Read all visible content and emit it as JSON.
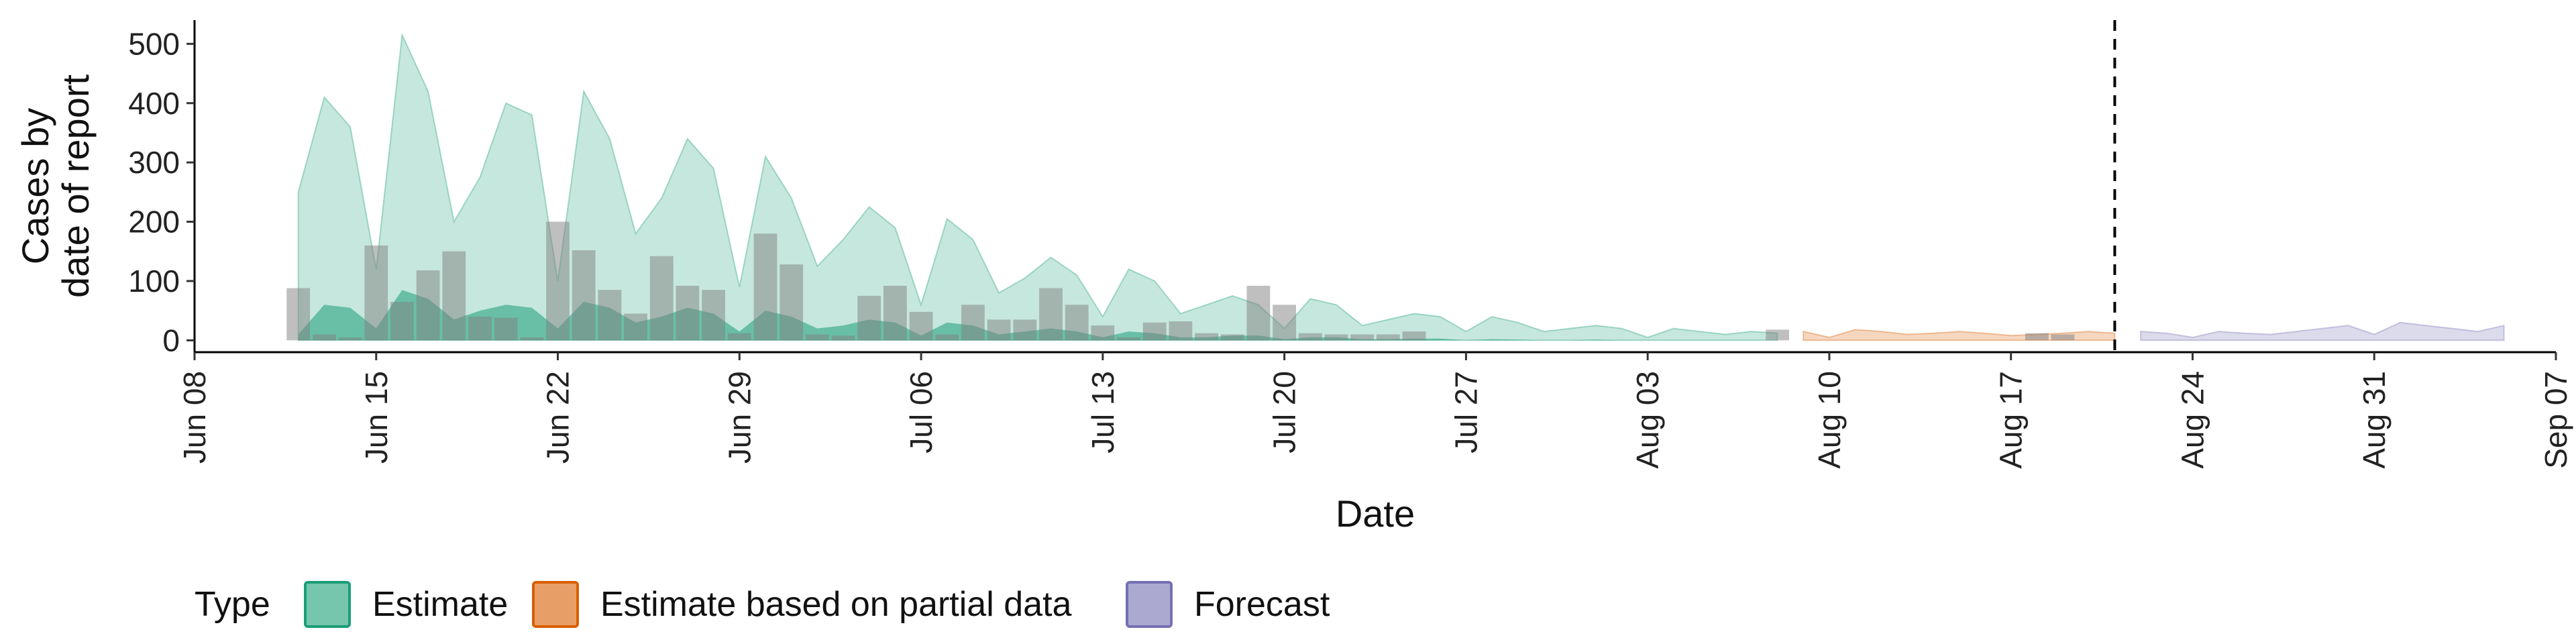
{
  "chart_data": {
    "type": "area",
    "xlabel": "Date",
    "ylabel_lines": [
      "Cases by",
      "date of report"
    ],
    "ylim": [
      -20,
      540
    ],
    "xlim": [
      "2020-06-08",
      "2020-09-07"
    ],
    "yticks": [
      0,
      100,
      200,
      300,
      400,
      500
    ],
    "xticks": [
      "2020-06-08",
      "2020-06-15",
      "2020-06-22",
      "2020-06-29",
      "2020-07-06",
      "2020-07-13",
      "2020-07-20",
      "2020-07-27",
      "2020-08-03",
      "2020-08-10",
      "2020-08-17",
      "2020-08-24",
      "2020-08-31",
      "2020-09-07"
    ],
    "xtick_labels": [
      "Jun 08",
      "Jun 15",
      "Jun 22",
      "Jun 29",
      "Jul 06",
      "Jul 13",
      "Jul 20",
      "Jul 27",
      "Aug 03",
      "Aug 10",
      "Aug 17",
      "Aug 24",
      "Aug 31",
      "Sep 07"
    ],
    "grid": false,
    "forecast_line_date": "2020-08-21",
    "colors": {
      "estimate": "#1b9e77",
      "partial": "#d95f02",
      "forecast": "#7570b3",
      "bars": "#808080"
    },
    "legend": {
      "title": "Type",
      "position": "bottom",
      "entries": [
        {
          "key": "estimate",
          "label": "Estimate"
        },
        {
          "key": "partial",
          "label": "Estimate based on partial data"
        },
        {
          "key": "forecast",
          "label": "Forecast"
        }
      ]
    },
    "bars": {
      "x": [
        "2020-06-12",
        "2020-06-13",
        "2020-06-14",
        "2020-06-15",
        "2020-06-16",
        "2020-06-17",
        "2020-06-18",
        "2020-06-19",
        "2020-06-20",
        "2020-06-21",
        "2020-06-22",
        "2020-06-23",
        "2020-06-24",
        "2020-06-25",
        "2020-06-26",
        "2020-06-27",
        "2020-06-28",
        "2020-06-29",
        "2020-06-30",
        "2020-07-01",
        "2020-07-02",
        "2020-07-03",
        "2020-07-04",
        "2020-07-05",
        "2020-07-06",
        "2020-07-07",
        "2020-07-08",
        "2020-07-09",
        "2020-07-10",
        "2020-07-11",
        "2020-07-12",
        "2020-07-13",
        "2020-07-14",
        "2020-07-15",
        "2020-07-16",
        "2020-07-17",
        "2020-07-18",
        "2020-07-19",
        "2020-07-20",
        "2020-07-21",
        "2020-07-22",
        "2020-07-23",
        "2020-07-24",
        "2020-07-25",
        "2020-08-08",
        "2020-08-18",
        "2020-08-19"
      ],
      "values": [
        88,
        10,
        5,
        160,
        65,
        118,
        150,
        40,
        38,
        5,
        200,
        152,
        85,
        45,
        142,
        92,
        85,
        12,
        180,
        128,
        10,
        8,
        75,
        92,
        48,
        10,
        60,
        35,
        35,
        88,
        60,
        25,
        5,
        30,
        32,
        12,
        10,
        92,
        60,
        12,
        10,
        10,
        10,
        15,
        18,
        12,
        10
      ]
    },
    "series": [
      {
        "name": "Estimate",
        "key": "estimate",
        "x": [
          "2020-06-12",
          "2020-06-13",
          "2020-06-14",
          "2020-06-15",
          "2020-06-16",
          "2020-06-17",
          "2020-06-18",
          "2020-06-19",
          "2020-06-20",
          "2020-06-21",
          "2020-06-22",
          "2020-06-23",
          "2020-06-24",
          "2020-06-25",
          "2020-06-26",
          "2020-06-27",
          "2020-06-28",
          "2020-06-29",
          "2020-06-30",
          "2020-07-01",
          "2020-07-02",
          "2020-07-03",
          "2020-07-04",
          "2020-07-05",
          "2020-07-06",
          "2020-07-07",
          "2020-07-08",
          "2020-07-09",
          "2020-07-10",
          "2020-07-11",
          "2020-07-12",
          "2020-07-13",
          "2020-07-14",
          "2020-07-15",
          "2020-07-16",
          "2020-07-17",
          "2020-07-18",
          "2020-07-19",
          "2020-07-20",
          "2020-07-21",
          "2020-07-22",
          "2020-07-23",
          "2020-07-24",
          "2020-07-25",
          "2020-07-26",
          "2020-07-27",
          "2020-07-28",
          "2020-07-29",
          "2020-07-30",
          "2020-07-31",
          "2020-08-01",
          "2020-08-02",
          "2020-08-03",
          "2020-08-04",
          "2020-08-05",
          "2020-08-06",
          "2020-08-07",
          "2020-08-08"
        ],
        "upper": [
          250,
          410,
          360,
          120,
          515,
          420,
          200,
          275,
          400,
          380,
          100,
          420,
          340,
          180,
          240,
          340,
          290,
          90,
          310,
          240,
          125,
          170,
          225,
          190,
          60,
          205,
          170,
          80,
          105,
          140,
          110,
          40,
          120,
          100,
          45,
          60,
          75,
          60,
          20,
          70,
          60,
          25,
          35,
          45,
          40,
          15,
          40,
          30,
          15,
          20,
          25,
          20,
          5,
          20,
          15,
          10,
          15,
          12
        ],
        "lower": [
          10,
          60,
          55,
          20,
          85,
          70,
          35,
          50,
          60,
          55,
          20,
          65,
          55,
          30,
          40,
          55,
          45,
          15,
          50,
          40,
          20,
          25,
          35,
          30,
          8,
          30,
          25,
          10,
          15,
          20,
          15,
          5,
          15,
          12,
          5,
          5,
          8,
          8,
          2,
          5,
          5,
          2,
          2,
          3,
          3,
          0,
          2,
          1,
          0,
          0,
          1,
          0,
          0,
          0,
          0,
          0,
          0,
          0
        ]
      },
      {
        "name": "Estimate based on partial data",
        "key": "partial",
        "x": [
          "2020-08-09",
          "2020-08-10",
          "2020-08-11",
          "2020-08-12",
          "2020-08-13",
          "2020-08-14",
          "2020-08-15",
          "2020-08-16",
          "2020-08-17",
          "2020-08-18",
          "2020-08-19",
          "2020-08-20",
          "2020-08-21"
        ],
        "upper": [
          15,
          5,
          18,
          15,
          10,
          12,
          15,
          12,
          8,
          10,
          12,
          15,
          12
        ],
        "lower": [
          0,
          0,
          0,
          0,
          0,
          0,
          0,
          0,
          0,
          0,
          0,
          0,
          0
        ]
      },
      {
        "name": "Forecast",
        "key": "forecast",
        "x": [
          "2020-08-22",
          "2020-08-23",
          "2020-08-24",
          "2020-08-25",
          "2020-08-26",
          "2020-08-27",
          "2020-08-28",
          "2020-08-29",
          "2020-08-30",
          "2020-08-31",
          "2020-09-01",
          "2020-09-02",
          "2020-09-03",
          "2020-09-04",
          "2020-09-05"
        ],
        "upper": [
          15,
          12,
          5,
          15,
          12,
          10,
          15,
          20,
          25,
          10,
          30,
          25,
          20,
          15,
          25
        ],
        "lower": [
          0,
          0,
          0,
          0,
          0,
          0,
          0,
          0,
          0,
          0,
          0,
          0,
          0,
          0,
          0
        ]
      }
    ]
  }
}
